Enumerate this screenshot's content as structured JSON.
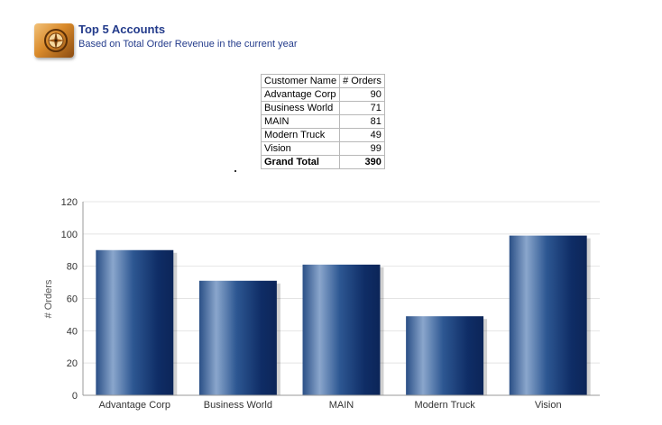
{
  "header": {
    "title": "Top 5 Accounts",
    "subtitle": "Based on Total Order Revenue in the current year",
    "icon": "compass-icon"
  },
  "table": {
    "columns": [
      "Customer Name",
      "# Orders"
    ],
    "rows": [
      {
        "name": "Advantage Corp",
        "orders": "90"
      },
      {
        "name": "Business World",
        "orders": "71"
      },
      {
        "name": "MAIN",
        "orders": "81"
      },
      {
        "name": "Modern Truck",
        "orders": "49"
      },
      {
        "name": "Vision",
        "orders": "99"
      }
    ],
    "total": {
      "label": "Grand Total",
      "value": "390"
    }
  },
  "colors": {
    "bar_dark": "#0f2d66",
    "bar_light": "#8aa6cc",
    "title_color": "#233b8b",
    "grid": "#e4e4e4"
  },
  "chart_data": {
    "type": "bar",
    "categories": [
      "Advantage Corp",
      "Business World",
      "MAIN",
      "Modern Truck",
      "Vision"
    ],
    "values": [
      90,
      71,
      81,
      49,
      99
    ],
    "ylabel": "# Orders",
    "xlabel": "",
    "ylim": [
      0,
      120
    ],
    "yticks": [
      0,
      20,
      40,
      60,
      80,
      100,
      120
    ],
    "grid": true
  }
}
